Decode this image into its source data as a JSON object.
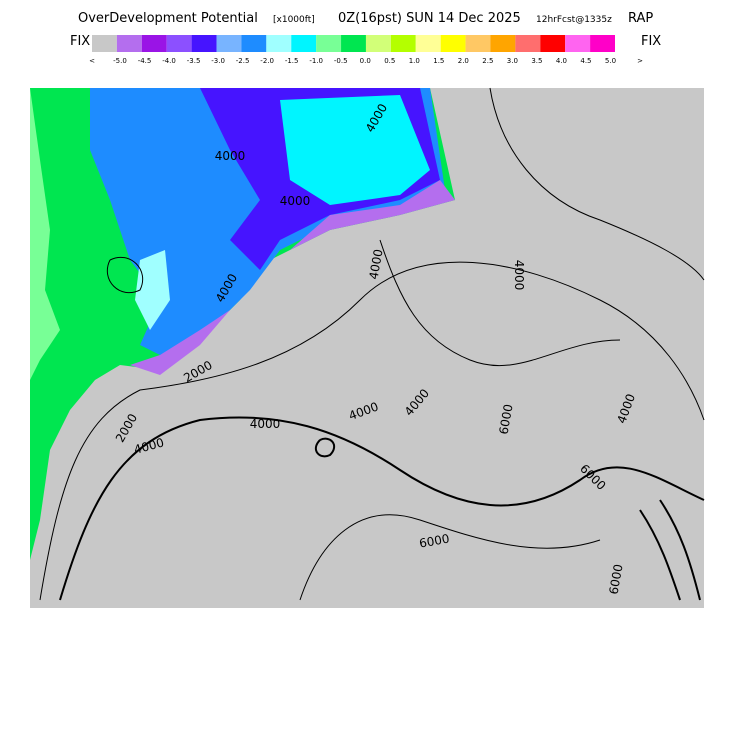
{
  "header": {
    "title": "OverDevelopment Potential",
    "units": "[x1000ft]",
    "valid": "0Z(16pst) SUN 14 Dec 2025",
    "forecast": "12hrFcst@1335z",
    "model": "RAP"
  },
  "colorbar": {
    "left_label": "FIX",
    "right_label": "FIX",
    "colors": [
      "#c8c8c8",
      "#b46eee",
      "#9a14e6",
      "#8c50ff",
      "#4614ff",
      "#78b4ff",
      "#1e8cff",
      "#a0ffff",
      "#00f5ff",
      "#78ff96",
      "#00e650",
      "#d2ff78",
      "#b4ff00",
      "#ffff96",
      "#ffff00",
      "#ffc864",
      "#ffa500",
      "#ff6e6e",
      "#ff0000",
      "#ff64f0",
      "#ff00c8"
    ],
    "ticks": [
      "<",
      "-5.0",
      "-4.5",
      "-4.0",
      "-3.5",
      "-3.0",
      "-2.5",
      "-2.0",
      "-1.5",
      "-1.0",
      "-0.5",
      "0.0",
      "0.5",
      "1.0",
      "1.5",
      "2.0",
      "2.5",
      "3.0",
      "3.5",
      "4.0",
      "4.5",
      "5.0",
      ">"
    ]
  },
  "map": {
    "contour_labels": [
      "4000",
      "4000",
      "4000",
      "4000",
      "2000",
      "2000",
      "4000",
      "4000",
      "4000",
      "4000",
      "6000",
      "4000",
      "4000",
      "6000",
      "6000",
      "6000",
      "4000"
    ]
  }
}
